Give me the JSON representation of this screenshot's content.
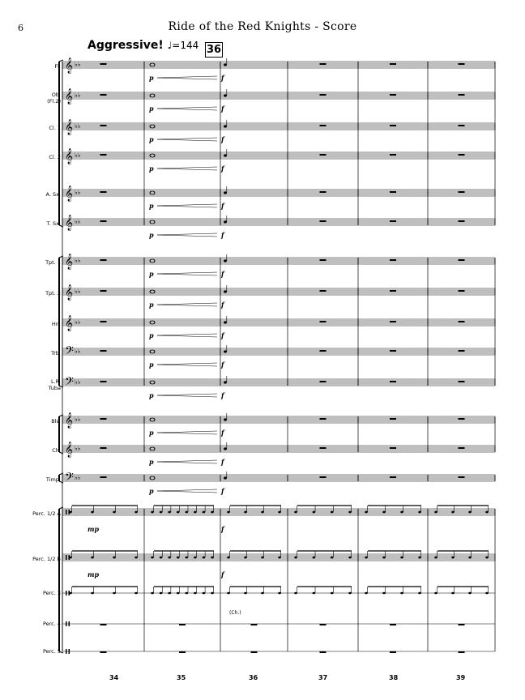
{
  "page": {
    "number": "6",
    "title": "Ride of the Red Knights - Score"
  },
  "tempo": {
    "text": "Aggressive!",
    "marking": "♩=144"
  },
  "rehearsal_mark": "36",
  "instruments": [
    {
      "label": "Fl."
    },
    {
      "label": "Ob.\n(Fl.2)"
    },
    {
      "label": "Cl. 1"
    },
    {
      "label": "Cl. 2"
    },
    {
      "label": "A. Sx."
    },
    {
      "label": "T. Sx."
    },
    {
      "label": "Tpt. 1"
    },
    {
      "label": "Tpt. 2"
    },
    {
      "label": "Hn."
    },
    {
      "label": "Trb."
    },
    {
      "label": "L.R.\nTuba"
    },
    {
      "label": "Bls."
    },
    {
      "label": "Ch."
    },
    {
      "label": "Timp."
    },
    {
      "label": "Perc. 1/2 A"
    },
    {
      "label": "Perc. 1/2 B"
    },
    {
      "label": "Perc. 3"
    },
    {
      "label": "Perc. 4"
    },
    {
      "label": "Perc. 5"
    }
  ],
  "measure_numbers": [
    "34",
    "35",
    "36",
    "37",
    "38",
    "39"
  ],
  "dynamics": {
    "soft": "p",
    "loud": "f",
    "perc_soft": "mp"
  },
  "annotation_ch": "(Ch.)"
}
